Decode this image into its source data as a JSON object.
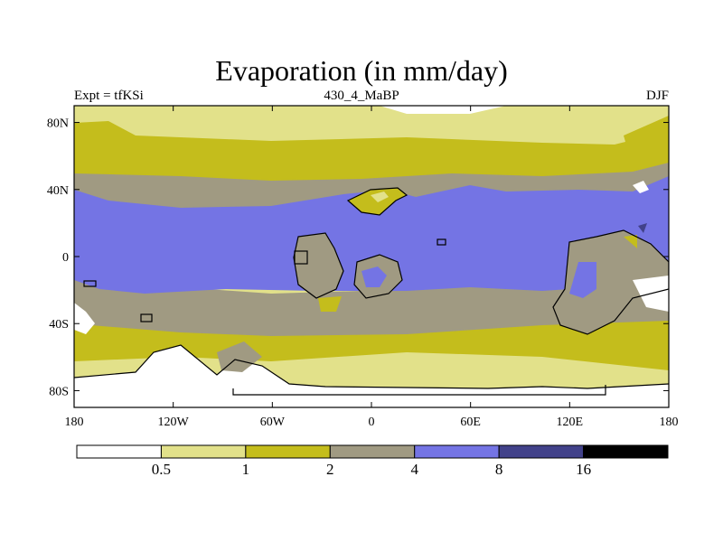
{
  "title": "Evaporation (in mm/day)",
  "subtitle_left": "Expt = tfKSi",
  "subtitle_center": "430_4_MaBP",
  "subtitle_right": "DJF",
  "map": {
    "lon_range": [
      -180,
      180
    ],
    "lat_range": [
      -90,
      90
    ],
    "x_ticks": [
      {
        "lon": -180,
        "label": "180"
      },
      {
        "lon": -120,
        "label": "120W"
      },
      {
        "lon": -60,
        "label": "60W"
      },
      {
        "lon": 0,
        "label": "0"
      },
      {
        "lon": 60,
        "label": "60E"
      },
      {
        "lon": 120,
        "label": "120E"
      },
      {
        "lon": 180,
        "label": "180"
      }
    ],
    "y_ticks": [
      {
        "lat": 80,
        "label": "80N"
      },
      {
        "lat": 40,
        "label": "40N"
      },
      {
        "lat": 0,
        "label": "0"
      },
      {
        "lat": -40,
        "label": "40S"
      },
      {
        "lat": -80,
        "label": "80S"
      }
    ]
  },
  "colorbar": {
    "boundaries": [
      "0.5",
      "1",
      "2",
      "4",
      "8",
      "16"
    ],
    "colors": [
      "#ffffff",
      "#e2e18a",
      "#c4bd1c",
      "#a09a82",
      "#7474e4",
      "#42428a",
      "#000000"
    ]
  }
}
